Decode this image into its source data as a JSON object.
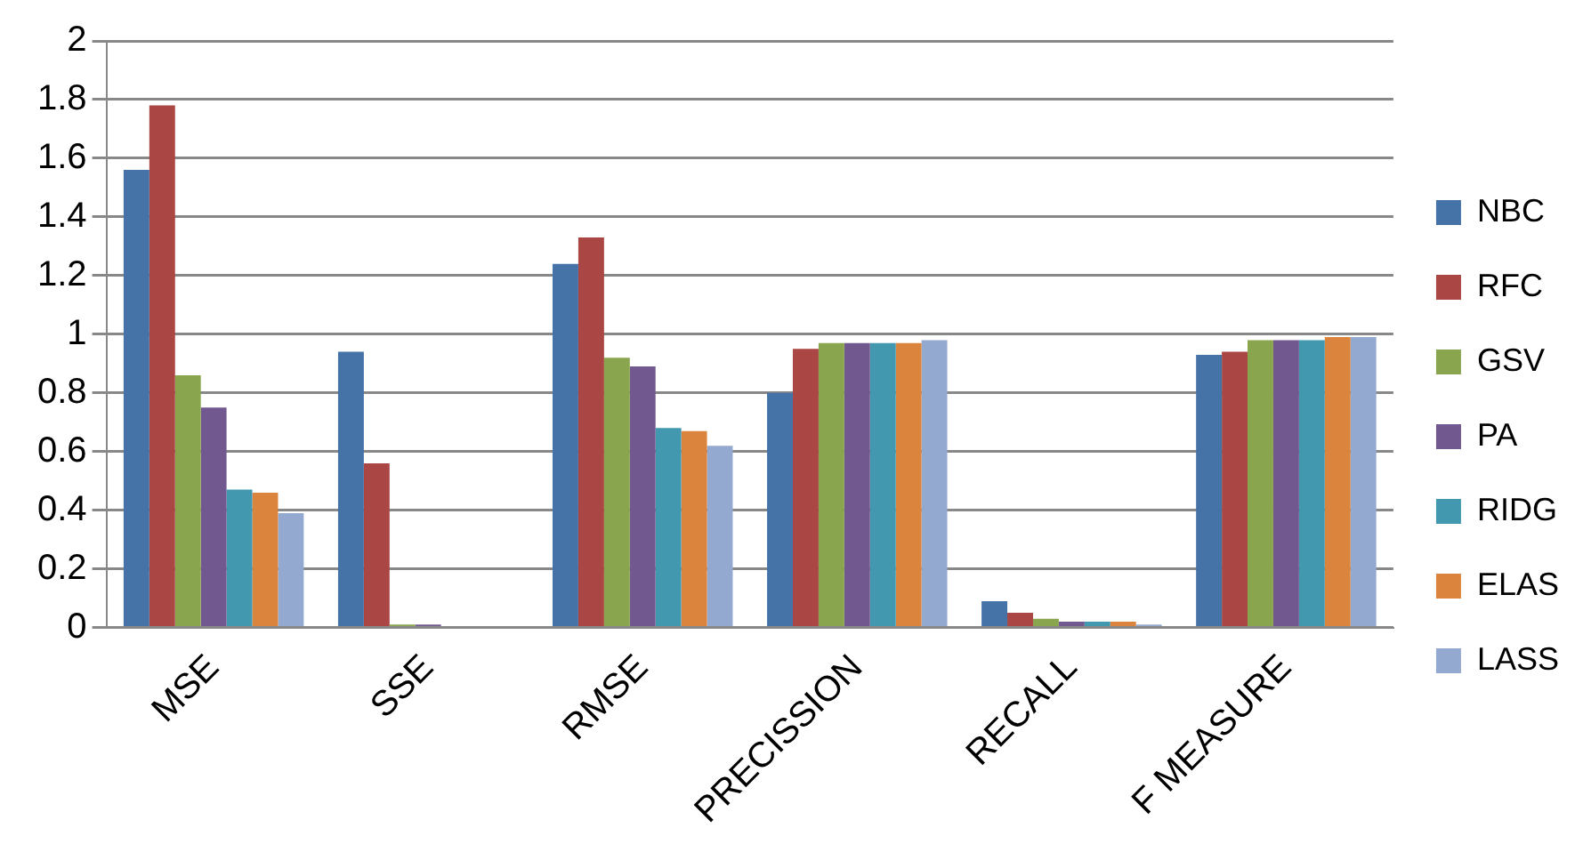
{
  "chart_data": {
    "type": "bar",
    "categories": [
      "MSE",
      "SSE",
      "RMSE",
      "PRECISSION",
      "RECALL",
      "F MEASURE"
    ],
    "series": [
      {
        "name": "NBC",
        "color": "#4572a7",
        "values": [
          1.56,
          0.94,
          1.24,
          0.8,
          0.09,
          0.93
        ]
      },
      {
        "name": "RFC",
        "color": "#aa4643",
        "values": [
          1.78,
          0.56,
          1.33,
          0.95,
          0.05,
          0.94
        ]
      },
      {
        "name": "GSV",
        "color": "#89a54e",
        "values": [
          0.86,
          0.01,
          0.92,
          0.97,
          0.03,
          0.98
        ]
      },
      {
        "name": "PA",
        "color": "#71588f",
        "values": [
          0.75,
          0.01,
          0.89,
          0.97,
          0.02,
          0.98
        ]
      },
      {
        "name": "RIDG",
        "color": "#4198af",
        "values": [
          0.47,
          0,
          0.68,
          0.97,
          0.02,
          0.98
        ]
      },
      {
        "name": "ELAS",
        "color": "#db843d",
        "values": [
          0.46,
          0,
          0.67,
          0.97,
          0.02,
          0.99
        ]
      },
      {
        "name": "LASS",
        "color": "#93a9cf",
        "values": [
          0.39,
          0,
          0.62,
          0.98,
          0.01,
          0.99
        ]
      }
    ],
    "ylim": [
      0,
      2
    ],
    "yticks": [
      0,
      0.2,
      0.4,
      0.6,
      0.8,
      1,
      1.2,
      1.4,
      1.6,
      1.8,
      2
    ],
    "grid": "y",
    "legend": "right"
  }
}
